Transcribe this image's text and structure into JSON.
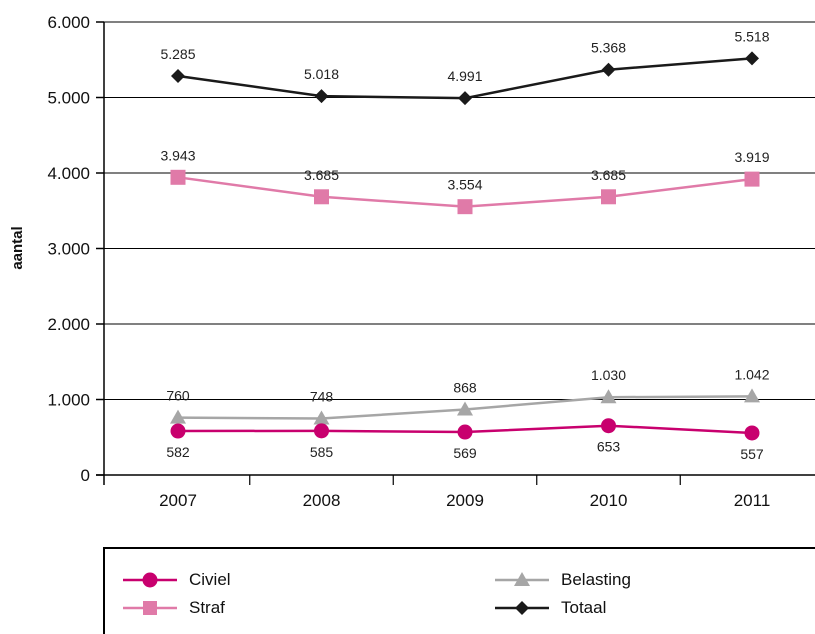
{
  "chart_data": {
    "type": "line",
    "title": "",
    "xlabel": "",
    "ylabel": "aantal",
    "categories": [
      "2007",
      "2008",
      "2009",
      "2010",
      "2011"
    ],
    "ylim": [
      0,
      6000
    ],
    "yticks": [
      0,
      1000,
      2000,
      3000,
      4000,
      5000,
      6000
    ],
    "ytick_labels": [
      "0",
      "1.000",
      "2.000",
      "3.000",
      "4.000",
      "5.000",
      "6.000"
    ],
    "grid": true,
    "legend_position": "bottom",
    "series": [
      {
        "name": "Totaal",
        "values": [
          5285,
          5018,
          4991,
          5368,
          5518
        ],
        "labels": [
          "5.285",
          "5.018",
          "4.991",
          "5.368",
          "5.518"
        ],
        "color": "#1a1a1a",
        "marker": "diamond",
        "label_pos": "above"
      },
      {
        "name": "Straf",
        "values": [
          3943,
          3685,
          3554,
          3685,
          3919
        ],
        "labels": [
          "3.943",
          "3.685",
          "3.554",
          "3.685",
          "3.919"
        ],
        "color": "#e07aa8",
        "marker": "square",
        "label_pos": "above"
      },
      {
        "name": "Belasting",
        "values": [
          760,
          748,
          868,
          1030,
          1042
        ],
        "labels": [
          "760",
          "748",
          "868",
          "1.030",
          "1.042"
        ],
        "color": "#a6a6a6",
        "marker": "triangle",
        "label_pos": "above"
      },
      {
        "name": "Civiel",
        "values": [
          582,
          585,
          569,
          653,
          557
        ],
        "labels": [
          "582",
          "585",
          "569",
          "653",
          "557"
        ],
        "color": "#c8006e",
        "marker": "circle",
        "label_pos": "below"
      }
    ]
  },
  "legend": {
    "items": [
      {
        "key": "civiel",
        "label": "Civiel",
        "color": "#c8006e",
        "marker": "circle"
      },
      {
        "key": "belasting",
        "label": "Belasting",
        "color": "#a6a6a6",
        "marker": "triangle"
      },
      {
        "key": "straf",
        "label": "Straf",
        "color": "#e07aa8",
        "marker": "square"
      },
      {
        "key": "totaal",
        "label": "Totaal",
        "color": "#1a1a1a",
        "marker": "diamond"
      }
    ]
  }
}
